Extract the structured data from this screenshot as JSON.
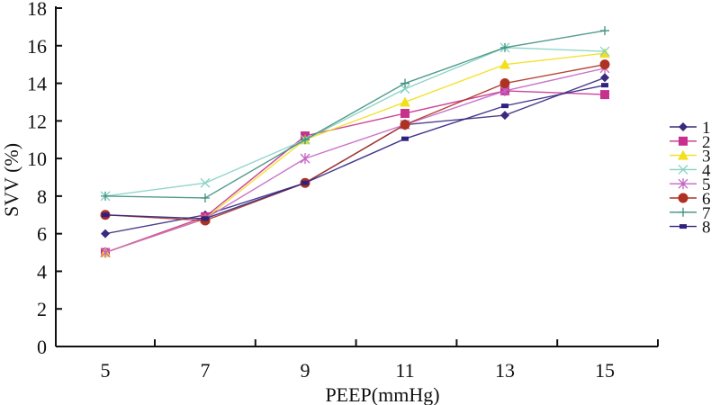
{
  "chart_data": {
    "type": "line",
    "title": "",
    "xlabel": "PEEP(mmHg)",
    "ylabel": "SVV (%)",
    "categories": [
      "5",
      "7",
      "9",
      "11",
      "13",
      "15"
    ],
    "ylim": [
      0,
      18
    ],
    "yticks": [
      "0",
      "2",
      "4",
      "6",
      "8",
      "10",
      "12",
      "14",
      "16",
      "18"
    ],
    "grid": false,
    "legend_position": "right",
    "series": [
      {
        "name": "1",
        "marker": "diamond",
        "color": "#3b2a7e",
        "values": [
          6.0,
          7.0,
          8.7,
          11.8,
          12.3,
          14.3
        ]
      },
      {
        "name": "2",
        "marker": "square",
        "color": "#c7308c",
        "values": [
          5.0,
          6.9,
          11.2,
          12.4,
          13.6,
          13.4
        ]
      },
      {
        "name": "3",
        "marker": "triangle",
        "color": "#f2df1e",
        "values": [
          5.0,
          6.8,
          11.0,
          13.0,
          15.0,
          15.6
        ]
      },
      {
        "name": "4",
        "marker": "x",
        "color": "#86d2c4",
        "values": [
          8.0,
          8.7,
          11.0,
          13.7,
          15.9,
          15.7
        ]
      },
      {
        "name": "5",
        "marker": "asterisk",
        "color": "#c266c4",
        "values": [
          5.0,
          6.8,
          10.0,
          11.8,
          13.6,
          14.8
        ]
      },
      {
        "name": "6",
        "marker": "circle",
        "color": "#ad3222",
        "values": [
          7.0,
          6.7,
          8.7,
          11.8,
          14.0,
          15.0
        ]
      },
      {
        "name": "7",
        "marker": "plus",
        "color": "#3f8f7f",
        "values": [
          8.0,
          7.9,
          11.0,
          14.0,
          15.9,
          16.8
        ]
      },
      {
        "name": "8",
        "marker": "dash",
        "color": "#2e2280",
        "values": [
          7.0,
          6.8,
          8.7,
          11.05,
          12.8,
          13.9
        ]
      }
    ]
  }
}
